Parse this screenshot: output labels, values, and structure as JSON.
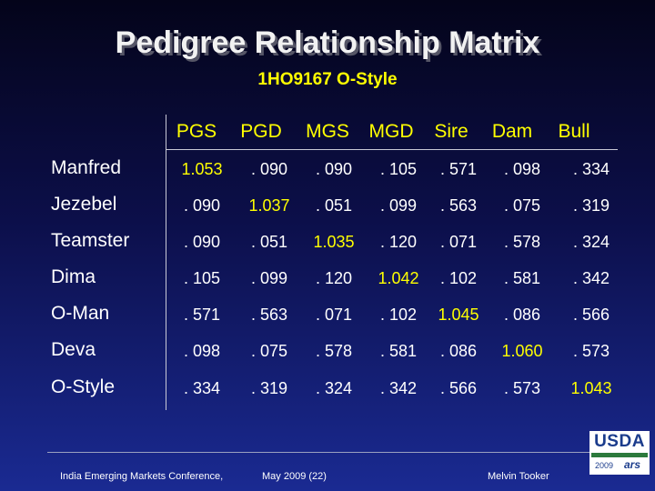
{
  "title": "Pedigree Relationship Matrix",
  "subtitle": "1HO9167 O-Style",
  "columns": [
    "PGS",
    "PGD",
    "MGS",
    "MGD",
    "Sire",
    "Dam",
    "Bull"
  ],
  "rows": [
    {
      "label": "Manfred",
      "values": [
        "1.053",
        ". 090",
        ". 090",
        ". 105",
        ". 571",
        ". 098",
        ". 334"
      ]
    },
    {
      "label": "Jezebel",
      "values": [
        ". 090",
        "1.037",
        ". 051",
        ". 099",
        ". 563",
        ". 075",
        ". 319"
      ]
    },
    {
      "label": "Teamster",
      "values": [
        ". 090",
        ". 051",
        "1.035",
        ". 120",
        ". 071",
        ". 578",
        ". 324"
      ]
    },
    {
      "label": "Dima",
      "values": [
        ". 105",
        ". 099",
        ". 120",
        "1.042",
        ". 102",
        ". 581",
        ". 342"
      ]
    },
    {
      "label": "O-Man",
      "values": [
        ". 571",
        ". 563",
        ". 071",
        ". 102",
        "1.045",
        ". 086",
        ". 566"
      ]
    },
    {
      "label": "Deva",
      "values": [
        ". 098",
        ". 075",
        ". 578",
        ". 581",
        ". 086",
        "1.060",
        ". 573"
      ]
    },
    {
      "label": "O-Style",
      "values": [
        ". 334",
        ". 319",
        ". 324",
        ". 342",
        ". 566",
        ". 573",
        "1.043"
      ]
    }
  ],
  "footer": {
    "conference": "India Emerging Markets Conference,",
    "date": "May 2009 (22)",
    "author": "Melvin Tooker"
  },
  "logo": {
    "text": "USDA",
    "year": "2009",
    "ars": "ars",
    "colors": {
      "blue": "#1b3c8c",
      "green": "#2c7a3c"
    }
  },
  "colors": {
    "header_text": "#ffff00",
    "diagonal_text": "#ffff00",
    "cell_text": "#ffffff"
  }
}
